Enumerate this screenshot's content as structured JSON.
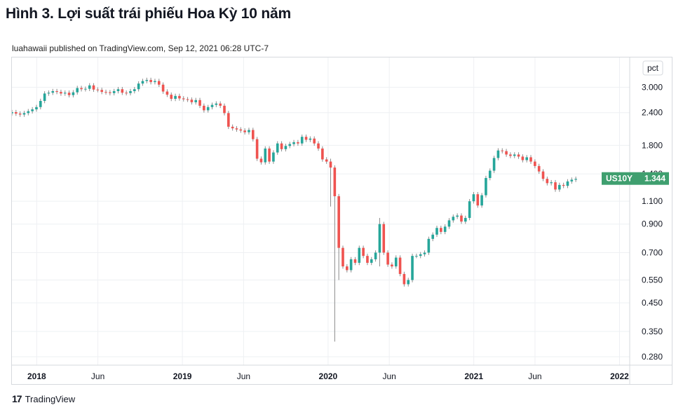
{
  "figure": {
    "title": "Hình 3. Lợi suất trái phiếu Hoa Kỳ 10 năm",
    "byline": "luahawaii published on TradingView.com, Sep 12, 2021 06:28 UTC-7",
    "footer_brand": "TradingView",
    "logo_text": "17"
  },
  "chart_data": {
    "type": "candlestick",
    "symbol": "US10Y",
    "last_value": "1.344",
    "unit_label": "pct",
    "scale": "log",
    "ylim": [
      0.26,
      3.9
    ],
    "y_ticks": [
      "3.000",
      "2.400",
      "1.800",
      "1.400",
      "1.100",
      "0.900",
      "0.700",
      "0.550",
      "0.450",
      "0.350",
      "0.280"
    ],
    "x_ticks": [
      {
        "label": "2018",
        "date": 2018.0
      },
      {
        "label": "Jun",
        "date": 2018.42
      },
      {
        "label": "2019",
        "date": 2019.0
      },
      {
        "label": "Jun",
        "date": 2019.42
      },
      {
        "label": "2020",
        "date": 2020.0
      },
      {
        "label": "Jun",
        "date": 2020.42
      },
      {
        "label": "2021",
        "date": 2021.0
      },
      {
        "label": "Jun",
        "date": 2021.42
      },
      {
        "label": "2022",
        "date": 2022.0
      }
    ],
    "xlim": [
      2017.83,
      2022.07
    ],
    "colors": {
      "up": "#26a69a",
      "down": "#ef5350",
      "label_bg": "#3f9f6f",
      "grid": "#eef0f3"
    },
    "series_close": [
      2.41,
      2.38,
      2.36,
      2.39,
      2.43,
      2.47,
      2.52,
      2.66,
      2.84,
      2.86,
      2.9,
      2.88,
      2.84,
      2.86,
      2.8,
      2.87,
      2.98,
      2.95,
      2.96,
      3.05,
      2.94,
      2.93,
      2.88,
      2.87,
      2.85,
      2.9,
      2.95,
      2.86,
      2.85,
      2.9,
      2.95,
      3.1,
      3.17,
      3.2,
      3.14,
      3.17,
      3.07,
      2.89,
      2.81,
      2.71,
      2.78,
      2.72,
      2.7,
      2.69,
      2.63,
      2.68,
      2.55,
      2.45,
      2.52,
      2.57,
      2.6,
      2.55,
      2.39,
      2.12,
      2.09,
      2.07,
      2.05,
      2.02,
      2.06,
      1.9,
      1.6,
      1.55,
      1.75,
      1.56,
      1.69,
      1.83,
      1.74,
      1.79,
      1.82,
      1.85,
      1.83,
      1.94,
      1.89,
      1.91,
      1.83,
      1.75,
      1.59,
      1.56,
      1.48,
      1.15,
      0.73,
      0.62,
      0.6,
      0.66,
      0.64,
      0.73,
      0.68,
      0.64,
      0.66,
      0.7,
      0.9,
      0.7,
      0.63,
      0.62,
      0.67,
      0.58,
      0.53,
      0.55,
      0.68,
      0.68,
      0.69,
      0.7,
      0.79,
      0.82,
      0.87,
      0.84,
      0.88,
      0.93,
      0.96,
      0.97,
      0.92,
      0.95,
      1.1,
      1.17,
      1.06,
      1.16,
      1.35,
      1.44,
      1.61,
      1.72,
      1.71,
      1.66,
      1.64,
      1.66,
      1.63,
      1.58,
      1.62,
      1.56,
      1.5,
      1.43,
      1.34,
      1.29,
      1.3,
      1.22,
      1.27,
      1.26,
      1.31,
      1.33,
      1.34
    ]
  }
}
